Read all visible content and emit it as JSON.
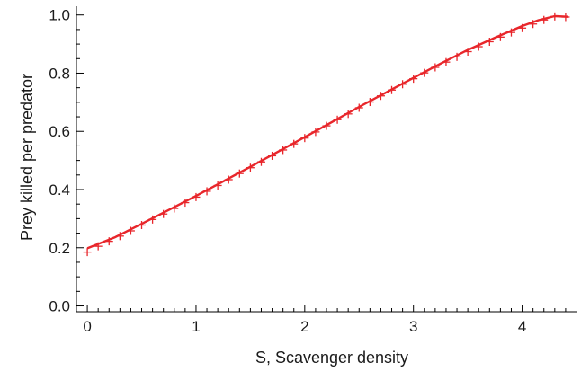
{
  "chart_data": {
    "type": "line",
    "title": "",
    "xlabel": "S, Scavenger density",
    "ylabel": "Prey killed per predator",
    "xlim": [
      -0.1,
      4.5
    ],
    "ylim": [
      -0.02,
      1.03
    ],
    "x_ticks": [
      0,
      1,
      2,
      3,
      4
    ],
    "x_tick_labels": [
      "0",
      "1",
      "2",
      "3",
      "4"
    ],
    "y_ticks": [
      0.0,
      0.2,
      0.4,
      0.6,
      0.8,
      1.0
    ],
    "y_tick_labels": [
      "0.0",
      "0.2",
      "0.4",
      "0.6",
      "0.8",
      "1.0"
    ],
    "grid": false,
    "legend": "none",
    "series": [
      {
        "style": "line",
        "color": "#e8262b",
        "x": [
          0,
          0.25,
          0.5,
          0.75,
          1,
          1.25,
          1.5,
          1.75,
          2,
          2.25,
          2.5,
          2.75,
          3,
          3.25,
          3.5,
          3.75,
          4,
          4.15,
          4.3,
          4.42
        ],
        "y": [
          0.198,
          0.235,
          0.282,
          0.33,
          0.378,
          0.428,
          0.478,
          0.529,
          0.58,
          0.632,
          0.684,
          0.734,
          0.784,
          0.833,
          0.88,
          0.922,
          0.962,
          0.982,
          0.996,
          0.994
        ]
      },
      {
        "style": "markers",
        "marker": "plus",
        "color": "#e8262b",
        "x": [
          0,
          0.1,
          0.2,
          0.3,
          0.4,
          0.5,
          0.6,
          0.7,
          0.8,
          0.9,
          1.0,
          1.1,
          1.2,
          1.3,
          1.4,
          1.5,
          1.6,
          1.7,
          1.8,
          1.9,
          2.0,
          2.1,
          2.2,
          2.3,
          2.4,
          2.5,
          2.6,
          2.7,
          2.8,
          2.9,
          3.0,
          3.1,
          3.2,
          3.3,
          3.4,
          3.5,
          3.6,
          3.7,
          3.8,
          3.9,
          4.0,
          4.1,
          4.2,
          4.3,
          4.4
        ],
        "y": [
          0.185,
          0.205,
          0.222,
          0.24,
          0.258,
          0.278,
          0.297,
          0.316,
          0.335,
          0.355,
          0.374,
          0.394,
          0.414,
          0.434,
          0.455,
          0.475,
          0.495,
          0.516,
          0.536,
          0.557,
          0.577,
          0.598,
          0.619,
          0.64,
          0.66,
          0.681,
          0.701,
          0.722,
          0.742,
          0.762,
          0.781,
          0.801,
          0.82,
          0.838,
          0.856,
          0.874,
          0.891,
          0.908,
          0.924,
          0.94,
          0.955,
          0.969,
          0.983,
          0.995,
          0.993
        ]
      }
    ]
  }
}
